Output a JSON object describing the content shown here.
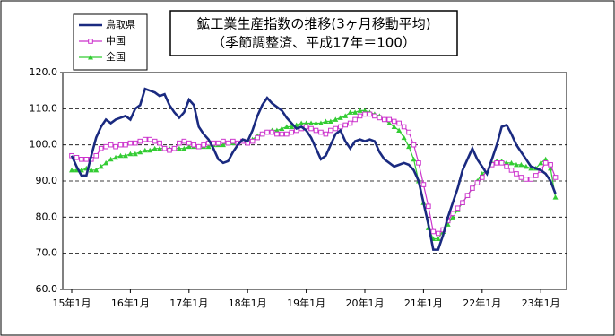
{
  "chart_data": {
    "type": "line",
    "title": "鉱工業生産指数の推移(3ヶ月移動平均)",
    "subtitle": "（季節調整済、平成17年＝100）",
    "categories": [
      "15年1月",
      null,
      null,
      null,
      null,
      null,
      null,
      null,
      null,
      null,
      null,
      null,
      "16年1月",
      null,
      null,
      null,
      null,
      null,
      null,
      null,
      null,
      null,
      null,
      null,
      "17年1月",
      null,
      null,
      null,
      null,
      null,
      null,
      null,
      null,
      null,
      null,
      null,
      "18年1月",
      null,
      null,
      null,
      null,
      null,
      null,
      null,
      null,
      null,
      null,
      null,
      "19年1月",
      null,
      null,
      null,
      null,
      null,
      null,
      null,
      null,
      null,
      null,
      null,
      "20年1月",
      null,
      null,
      null,
      null,
      null,
      null,
      null,
      null,
      null,
      null,
      null,
      "21年1月",
      null,
      null,
      null,
      null,
      null,
      null,
      null,
      null,
      null,
      null,
      null,
      "22年1月",
      null,
      null,
      null,
      null,
      null,
      null,
      null,
      null,
      null,
      null,
      null,
      "23年1月",
      null,
      null,
      null
    ],
    "series": [
      {
        "name": "鳥取県",
        "color": "#1a2a80",
        "marker": null,
        "values": [
          97,
          94,
          91.5,
          91.5,
          97,
          102,
          105,
          107,
          106,
          107,
          107.5,
          108,
          107,
          110,
          111,
          115.5,
          115,
          114.5,
          113.5,
          114,
          111,
          109,
          107.5,
          109,
          112.5,
          111,
          105,
          103,
          101.5,
          99,
          96,
          95,
          95.5,
          98,
          100,
          101.5,
          101,
          104,
          108,
          111,
          113,
          111.5,
          110.5,
          109.5,
          107.5,
          106,
          104.5,
          105,
          104,
          102,
          99,
          96,
          97,
          100,
          103,
          104,
          101,
          99,
          101,
          101.5,
          101,
          101.5,
          101,
          98,
          96,
          95,
          94,
          94.5,
          95,
          94.5,
          93,
          90,
          84,
          78,
          71,
          71,
          75,
          80,
          84,
          88,
          93,
          96,
          99,
          96,
          94,
          92,
          96,
          100,
          105,
          105.5,
          103,
          100,
          98,
          96,
          94,
          93.5,
          93,
          92,
          90,
          86.5
        ]
      },
      {
        "name": "中国",
        "color": "#cc33cc",
        "marker": "square",
        "values": [
          97,
          96.5,
          96,
          96,
          96,
          97,
          99,
          99.5,
          100,
          99.5,
          100,
          100,
          100.5,
          100.5,
          101,
          101.5,
          101.5,
          101,
          100.5,
          99,
          98.5,
          99,
          100.5,
          101,
          100.5,
          100,
          99.5,
          100,
          100.5,
          100.5,
          100.5,
          101,
          100.5,
          101,
          100.5,
          101,
          100.5,
          101,
          102,
          103,
          103.5,
          103.5,
          103,
          103,
          103,
          103.5,
          104,
          104.5,
          105,
          104.5,
          104,
          103.5,
          103,
          104,
          104.5,
          105,
          105.5,
          106,
          107,
          108,
          108.5,
          108.5,
          108,
          107.5,
          107,
          107,
          106.5,
          106,
          105,
          103.5,
          100,
          95,
          89,
          83,
          76,
          75.5,
          76.5,
          79,
          81,
          82.5,
          84,
          86,
          88,
          89.5,
          91,
          93,
          94.5,
          95,
          95,
          94,
          93,
          92,
          91,
          90.5,
          90.5,
          91.5,
          93,
          95,
          94.5,
          91
        ]
      },
      {
        "name": "全国",
        "color": "#33cc33",
        "marker": "triangle",
        "values": [
          93,
          93,
          93,
          93.5,
          93,
          93,
          94,
          95,
          96,
          96.5,
          97,
          97,
          97.5,
          97.5,
          98,
          98.5,
          98.5,
          99,
          99,
          99,
          99,
          99,
          99,
          99,
          99.5,
          99.5,
          99.5,
          99.5,
          99.5,
          100,
          100,
          100,
          100.5,
          100.5,
          100.5,
          101,
          101,
          101.5,
          102.5,
          103,
          103.5,
          104,
          104,
          104.5,
          105,
          105,
          105.5,
          106,
          106,
          106,
          106,
          106,
          106.5,
          106.5,
          107,
          107.5,
          108,
          109,
          109,
          109.5,
          109.5,
          109,
          108.5,
          108,
          107,
          106,
          105,
          104,
          102,
          99.5,
          96,
          90,
          84,
          77,
          74,
          74,
          76,
          78,
          80,
          82,
          84,
          86,
          88,
          90,
          92,
          93,
          95,
          95.5,
          95.5,
          95,
          95,
          94.5,
          94.5,
          94,
          93.5,
          93.5,
          95,
          96,
          93.5,
          85.5
        ]
      }
    ],
    "ylim": [
      60,
      120
    ],
    "yticks": [
      {
        "value": 60,
        "label": "60.0"
      },
      {
        "value": 70,
        "label": "70.0"
      },
      {
        "value": 80,
        "label": "80.0"
      },
      {
        "value": 90,
        "label": "90.0"
      },
      {
        "value": 100,
        "label": "100.0"
      },
      {
        "value": 110,
        "label": "110.0"
      },
      {
        "value": 120,
        "label": "120.0"
      }
    ],
    "grid": true,
    "legend": "upper left"
  }
}
